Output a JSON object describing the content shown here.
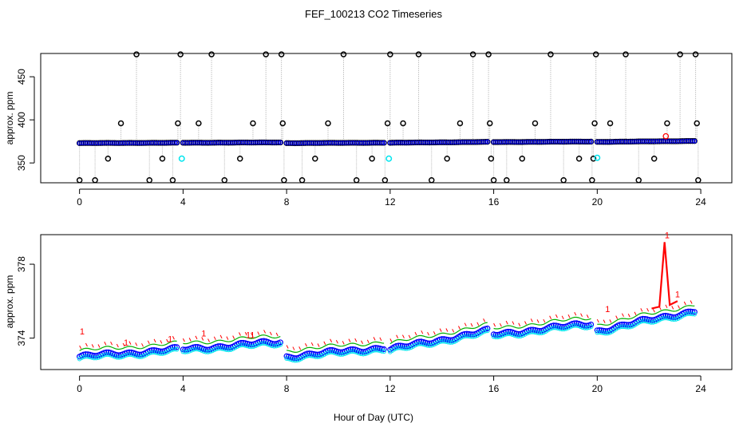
{
  "title": "FEF_100213  CO2 Timeseries",
  "xlabel": "Hour of Day (UTC)",
  "colors": {
    "axis": "#000000",
    "raw": "#000000",
    "avg": "#0000ff",
    "flag": "#ff0000",
    "cyan": "#00e5ee",
    "line": "#aaaaaa",
    "green": "#00b000"
  },
  "chart_data": [
    {
      "type": "scatter",
      "name": "top",
      "ylabel": "approx. ppm",
      "xlim": [
        -1.5,
        25.2
      ],
      "ylim": [
        327,
        477
      ],
      "xticks": [
        0,
        4,
        8,
        12,
        16,
        20,
        24
      ],
      "yticks": [
        350,
        400,
        450
      ],
      "segments": [
        {
          "x0": 0.0,
          "x1": 3.8,
          "y0": 373.0,
          "y1": 373.4
        },
        {
          "x0": 4.0,
          "x1": 7.8,
          "y0": 373.4,
          "y1": 373.8
        },
        {
          "x0": 8.0,
          "x1": 11.8,
          "y0": 373.0,
          "y1": 373.5
        },
        {
          "x0": 12.0,
          "x1": 15.8,
          "y0": 373.4,
          "y1": 374.4
        },
        {
          "x0": 16.0,
          "x1": 19.8,
          "y0": 374.2,
          "y1": 374.8
        },
        {
          "x0": 20.0,
          "x1": 23.8,
          "y0": 374.4,
          "y1": 375.5
        }
      ],
      "spikes": [
        [
          0.0,
          330
        ],
        [
          0.6,
          330
        ],
        [
          1.1,
          355
        ],
        [
          1.6,
          396
        ],
        [
          2.2,
          476
        ],
        [
          2.7,
          330
        ],
        [
          3.2,
          355
        ],
        [
          3.6,
          330
        ],
        [
          3.8,
          396
        ],
        [
          3.9,
          476
        ],
        [
          4.6,
          396
        ],
        [
          5.1,
          476
        ],
        [
          5.6,
          330
        ],
        [
          6.2,
          355
        ],
        [
          6.7,
          396
        ],
        [
          7.2,
          476
        ],
        [
          7.8,
          476
        ],
        [
          7.85,
          396
        ],
        [
          7.9,
          330
        ],
        [
          8.6,
          330
        ],
        [
          9.1,
          355
        ],
        [
          9.6,
          396
        ],
        [
          10.2,
          476
        ],
        [
          10.7,
          330
        ],
        [
          11.3,
          355
        ],
        [
          11.8,
          330
        ],
        [
          11.9,
          396
        ],
        [
          12.0,
          476
        ],
        [
          12.5,
          396
        ],
        [
          13.1,
          476
        ],
        [
          13.6,
          330
        ],
        [
          14.2,
          355
        ],
        [
          14.7,
          396
        ],
        [
          15.2,
          476
        ],
        [
          15.8,
          476
        ],
        [
          15.85,
          396
        ],
        [
          15.9,
          355
        ],
        [
          16.0,
          330
        ],
        [
          16.5,
          330
        ],
        [
          17.1,
          355
        ],
        [
          17.6,
          396
        ],
        [
          18.2,
          476
        ],
        [
          18.7,
          330
        ],
        [
          19.3,
          355
        ],
        [
          19.8,
          330
        ],
        [
          19.85,
          355
        ],
        [
          19.9,
          396
        ],
        [
          19.95,
          476
        ],
        [
          20.5,
          396
        ],
        [
          21.1,
          476
        ],
        [
          21.6,
          330
        ],
        [
          22.2,
          355
        ],
        [
          22.7,
          396
        ],
        [
          23.2,
          476
        ],
        [
          23.8,
          476
        ],
        [
          23.85,
          396
        ],
        [
          23.9,
          330
        ]
      ],
      "cyan_points": [
        [
          3.95,
          355
        ],
        [
          11.95,
          355
        ],
        [
          20.0,
          356
        ]
      ],
      "red_point": [
        22.65,
        381
      ]
    },
    {
      "type": "scatter",
      "name": "bottom",
      "ylabel": "approx. ppm",
      "xlim": [
        -1.5,
        25.2
      ],
      "ylim": [
        372.3,
        379.6
      ],
      "xticks": [
        0,
        4,
        8,
        12,
        16,
        20,
        24
      ],
      "yticks": [
        374,
        378
      ],
      "segments": [
        {
          "x0": 0.0,
          "x1": 3.8,
          "y0": 373.0,
          "y1": 373.4
        },
        {
          "x0": 4.0,
          "x1": 7.8,
          "y0": 373.4,
          "y1": 373.8
        },
        {
          "x0": 8.0,
          "x1": 11.8,
          "y0": 373.0,
          "y1": 373.5
        },
        {
          "x0": 12.0,
          "x1": 15.8,
          "y0": 373.4,
          "y1": 374.4
        },
        {
          "x0": 16.0,
          "x1": 19.8,
          "y0": 374.2,
          "y1": 374.8
        },
        {
          "x0": 20.0,
          "x1": 23.8,
          "y0": 374.4,
          "y1": 375.5
        }
      ],
      "spike_series": [
        [
          22.1,
          375.6
        ],
        [
          22.4,
          375.7
        ],
        [
          22.6,
          379.2
        ],
        [
          22.8,
          375.8
        ],
        [
          23.1,
          376.0
        ]
      ],
      "flag_labels": [
        {
          "x": 0.1,
          "y": 374.2,
          "text": "1"
        },
        {
          "x": 1.8,
          "y": 373.6,
          "text": "1"
        },
        {
          "x": 3.5,
          "y": 373.8,
          "text": "1"
        },
        {
          "x": 4.8,
          "y": 374.1,
          "text": "1"
        },
        {
          "x": 6.6,
          "y": 374.0,
          "text": "11"
        },
        {
          "x": 20.4,
          "y": 375.4,
          "text": "1"
        },
        {
          "x": 22.7,
          "y": 379.4,
          "text": "1"
        },
        {
          "x": 23.1,
          "y": 376.2,
          "text": "1"
        }
      ]
    }
  ]
}
